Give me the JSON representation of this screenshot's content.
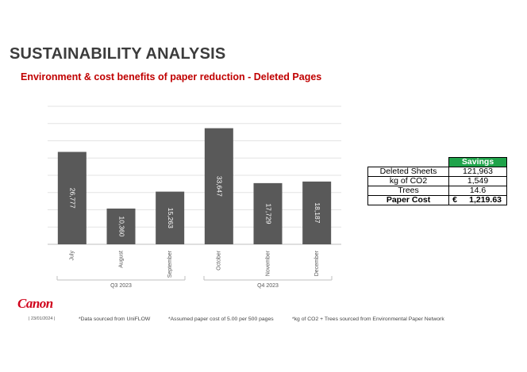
{
  "header": {
    "title": "SUSTAINABILITY ANALYSIS",
    "subtitle": "Environment & cost benefits of paper reduction - Deleted Pages"
  },
  "chart_data": {
    "type": "bar",
    "categories": [
      "July",
      "August",
      "September",
      "October",
      "November",
      "December"
    ],
    "values": [
      26777,
      10360,
      15263,
      33647,
      17729,
      18187
    ],
    "value_labels": [
      "26,777",
      "10,360",
      "15,263",
      "33,647",
      "17,729",
      "18,187"
    ],
    "groups": [
      {
        "label": "Q3 2023",
        "categories": [
          "July",
          "August",
          "September"
        ]
      },
      {
        "label": "Q4 2023",
        "categories": [
          "October",
          "November",
          "December"
        ]
      }
    ],
    "ylim": [
      0,
      40000
    ],
    "grid": true,
    "bar_color": "#595959",
    "label_color": "#ffffff"
  },
  "savings_table": {
    "header": "Savings",
    "rows": [
      {
        "label": "Deleted Sheets",
        "value": "121,963"
      },
      {
        "label": "kg of CO2",
        "value": "1,549"
      },
      {
        "label": "Trees",
        "value": "14.6"
      }
    ],
    "cost": {
      "label": "Paper Cost",
      "currency": "€",
      "value": "1,219.63"
    },
    "header_color": "#1fa34a"
  },
  "footer": {
    "logo": "Canon",
    "date": "| 23/01/2024 |",
    "notes": [
      "*Data sourced from UniFLOW",
      "*Assumed paper cost of 5.00 per 500 pages",
      "*kg of CO2 + Trees sourced from Environmental Paper Network"
    ]
  }
}
